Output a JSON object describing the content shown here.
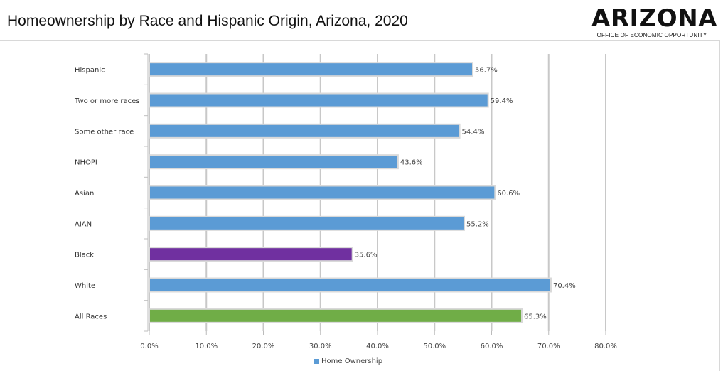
{
  "title": "Homeownership by Race and Hispanic Origin, Arizona, 2020",
  "logo": {
    "word": "ARIZONA",
    "subtitle": "OFFICE OF ECONOMIC OPPORTUNITY"
  },
  "legend": {
    "label": "Home Ownership",
    "color": "#5b9bd5"
  },
  "colors": {
    "default": "#5b9bd5",
    "black": "#7030a0",
    "all_races": "#70ad47"
  },
  "chart_data": {
    "type": "bar",
    "orientation": "horizontal",
    "categories": [
      "Hispanic",
      "Two or more races",
      "Some other race",
      "NHOPI",
      "Asian",
      "AIAN",
      "Black",
      "White",
      "All Races"
    ],
    "series": [
      {
        "name": "Home Ownership",
        "values": [
          56.7,
          59.4,
          54.4,
          43.6,
          60.6,
          55.2,
          35.6,
          70.4,
          65.3
        ]
      }
    ],
    "value_labels": [
      "56.7%",
      "59.4%",
      "54.4%",
      "43.6%",
      "60.6%",
      "55.2%",
      "35.6%",
      "70.4%",
      "65.3%"
    ],
    "bar_colors": [
      "#5b9bd5",
      "#5b9bd5",
      "#5b9bd5",
      "#5b9bd5",
      "#5b9bd5",
      "#5b9bd5",
      "#7030a0",
      "#5b9bd5",
      "#70ad47"
    ],
    "xlim": [
      0,
      80
    ],
    "xticks": [
      "0.0%",
      "10.0%",
      "20.0%",
      "30.0%",
      "40.0%",
      "50.0%",
      "60.0%",
      "70.0%",
      "80.0%"
    ],
    "grid": true,
    "legend_position": "bottom"
  }
}
